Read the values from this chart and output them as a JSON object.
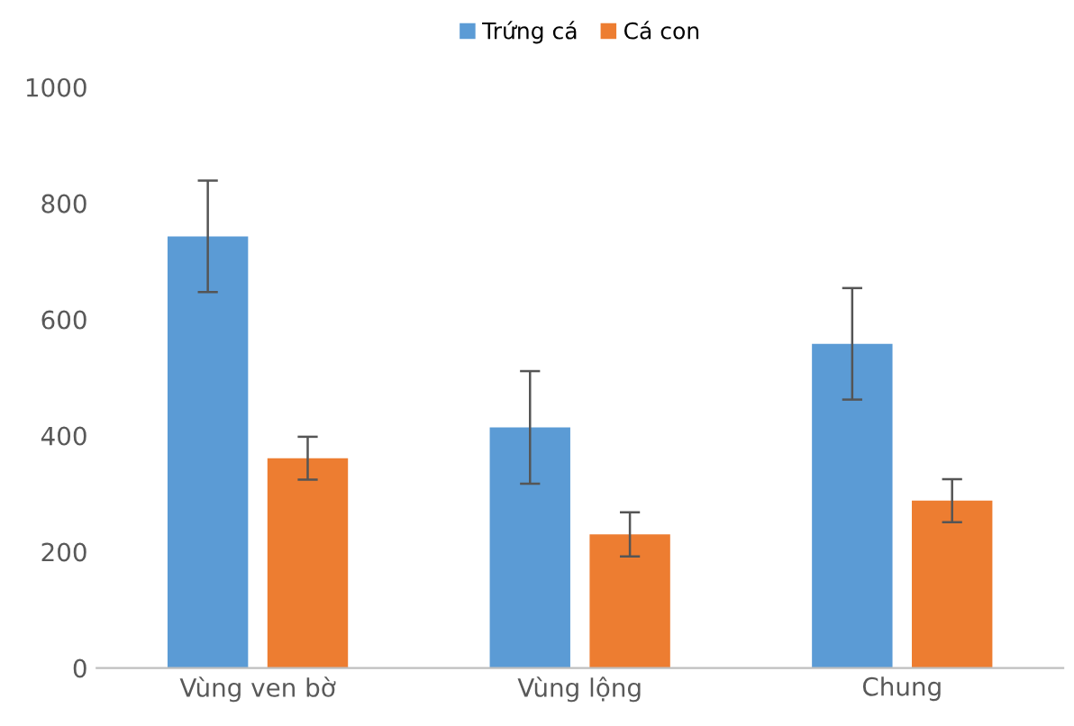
{
  "chart_data": {
    "type": "bar",
    "categories": [
      "Vùng ven bờ",
      "Vùng lộng",
      "Chung"
    ],
    "series": [
      {
        "name": "Trứng cá",
        "color": "#5b9bd5",
        "values": [
          743,
          414,
          558
        ],
        "errors": [
          96,
          97,
          96
        ]
      },
      {
        "name": "Cá con",
        "color": "#ed7d31",
        "values": [
          361,
          230,
          288
        ],
        "errors": [
          37,
          38,
          37
        ]
      }
    ],
    "ylim": [
      0,
      1000
    ],
    "yticks": [
      0,
      200,
      400,
      600,
      800,
      1000
    ],
    "grid": false,
    "legend": "top"
  }
}
